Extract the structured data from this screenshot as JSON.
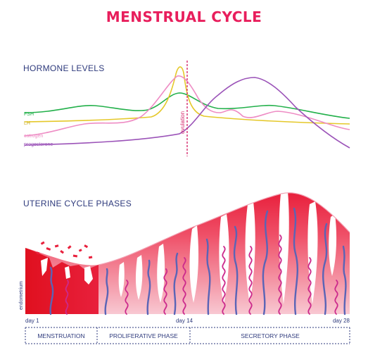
{
  "title": "MENSTRUAL CYCLE",
  "hormone_heading": "HORMONE LEVELS",
  "uterine_heading": "UTERINE CYCLE PHASES",
  "ovulation_label": "ovulation",
  "endometrium_label": "endometrium",
  "hormones": [
    {
      "name": "FSH",
      "color": "#22b04a"
    },
    {
      "name": "LH",
      "color": "#e5c82a"
    },
    {
      "name": "estrogen",
      "color": "#ee8cc4"
    },
    {
      "name": "progesterone",
      "color": "#9b53b8"
    }
  ],
  "day_labels": {
    "start": "day 1",
    "middle": "day 14",
    "end": "day 28"
  },
  "phases": [
    "MENSTRUATION",
    "PROLIFERATIVE PHASE",
    "SECRETORY PHASE"
  ],
  "colors": {
    "title": "#e81e5c",
    "heading": "#2e3a7c",
    "ovulation": "#d62a6e",
    "tissue_dark": "#e8203c",
    "tissue_light": "#f6c6d0",
    "vessel_blue": "#5a64b6",
    "vessel_pink": "#cc2a8c",
    "phase_text": "#2e3a7c"
  }
}
